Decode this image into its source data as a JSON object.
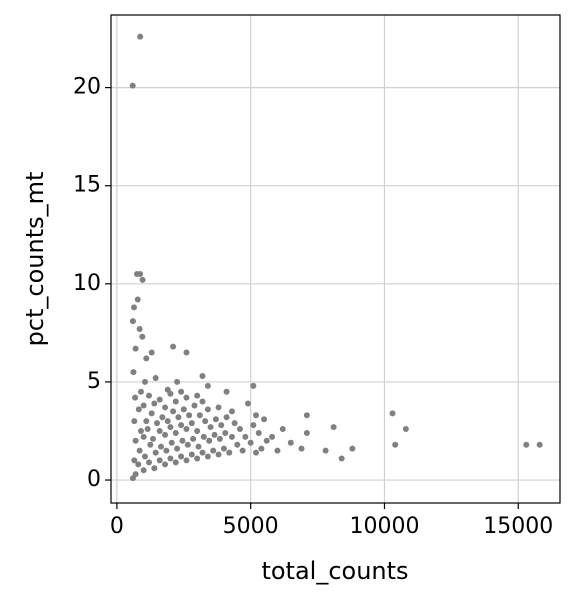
{
  "chart_data": {
    "type": "scatter",
    "x_label": "total_counts",
    "y_label": "pct_counts_mt",
    "color": "#808080",
    "grid": true,
    "xlim": [
      -220,
      16560
    ],
    "ylim": [
      -1.17,
      23.7
    ],
    "xticks": [
      0,
      5000,
      10000,
      15000
    ],
    "yticks": [
      0,
      5,
      10,
      15,
      20
    ],
    "x": [
      870,
      590,
      750,
      870,
      960,
      780,
      640,
      600,
      850,
      950,
      700,
      1300,
      2100,
      2600,
      1100,
      3200,
      3400,
      4100,
      5100,
      10300,
      10800,
      10400,
      15300,
      15800,
      8800,
      8400,
      8100,
      7800,
      7100,
      7100,
      6500,
      6000,
      5800,
      5500,
      4900,
      4300,
      6200,
      6900,
      600,
      700,
      650,
      700,
      650,
      680,
      620,
      800,
      850,
      900,
      820,
      900,
      1000,
      1050,
      1000,
      1100,
      1000,
      1050,
      1200,
      1250,
      1150,
      1300,
      1200,
      1400,
      1450,
      1350,
      1500,
      1400,
      1450,
      1600,
      1650,
      1600,
      1700,
      1600,
      1800,
      1850,
      1800,
      1900,
      1800,
      1900,
      2000,
      2050,
      2000,
      2100,
      2000,
      2200,
      2250,
      2200,
      2300,
      2200,
      2250,
      2400,
      2450,
      2400,
      2500,
      2400,
      2600,
      2650,
      2600,
      2700,
      2600,
      2800,
      2850,
      2800,
      2900,
      3000,
      3050,
      3000,
      3100,
      3000,
      3200,
      3250,
      3300,
      3200,
      3400,
      3450,
      3500,
      3400,
      3600,
      3650,
      3700,
      3800,
      3850,
      3900,
      3800,
      4000,
      4050,
      4100,
      4200,
      4300,
      4400,
      4500,
      4600,
      4700,
      4800,
      5000,
      5100,
      5200,
      5300,
      5400,
      5600,
      5200
    ],
    "y": [
      22.6,
      20.1,
      10.5,
      10.5,
      10.2,
      9.2,
      8.8,
      8.1,
      7.7,
      7.3,
      6.7,
      6.5,
      6.8,
      6.5,
      6.2,
      5.3,
      4.8,
      4.5,
      4.8,
      3.4,
      2.6,
      1.8,
      1.8,
      1.8,
      1.6,
      1.1,
      2.7,
      1.5,
      3.3,
      2.4,
      1.9,
      1.5,
      2.2,
      3.1,
      3.9,
      3.5,
      2.6,
      1.6,
      0.1,
      0.3,
      1.0,
      2.0,
      3.0,
      4.2,
      5.5,
      0.8,
      1.5,
      2.5,
      3.6,
      4.5,
      0.5,
      1.2,
      2.2,
      3.0,
      3.8,
      5.0,
      0.9,
      1.8,
      2.6,
      3.4,
      4.3,
      0.6,
      1.4,
      2.1,
      2.9,
      3.9,
      5.2,
      1.0,
      1.7,
      2.5,
      3.2,
      4.1,
      0.8,
      1.5,
      2.3,
      3.0,
      3.7,
      4.6,
      1.1,
      1.9,
      2.7,
      3.5,
      4.4,
      0.9,
      1.6,
      2.4,
      3.2,
      4.0,
      5.0,
      1.2,
      2.0,
      2.8,
      3.6,
      4.5,
      1.0,
      1.8,
      2.6,
      3.3,
      4.2,
      1.3,
      2.1,
      2.9,
      3.8,
      1.1,
      1.7,
      2.5,
      3.3,
      4.3,
      1.4,
      2.2,
      3.0,
      4.0,
      1.2,
      2.0,
      2.7,
      3.6,
      1.5,
      2.3,
      3.1,
      1.3,
      2.1,
      2.8,
      3.7,
      1.6,
      2.4,
      3.2,
      1.4,
      2.2,
      2.9,
      1.8,
      2.6,
      1.5,
      2.2,
      1.9,
      2.8,
      1.4,
      2.4,
      1.6,
      2.0,
      3.3
    ]
  }
}
